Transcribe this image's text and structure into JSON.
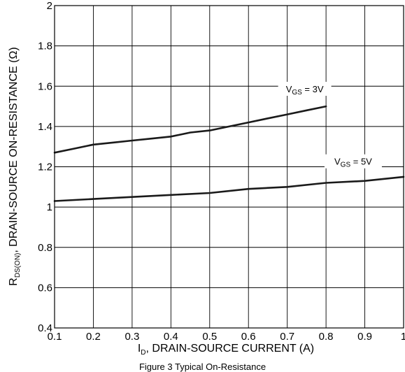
{
  "chart_data": {
    "type": "line",
    "title": "",
    "xlabel": "I_D, DRAIN-SOURCE CURRENT (A)",
    "xlabel_main": "I",
    "xlabel_sub": "D",
    "xlabel_rest": ", DRAIN-SOURCE CURRENT (A)",
    "ylabel": "R_DS(ON), DRAIN-SOURCE ON-RESISTANCE (Ω)",
    "ylabel_main": "R",
    "ylabel_sub": "DS(ON)",
    "ylabel_rest": ", DRAIN-SOURCE ON-RESISTANCE (Ω)",
    "xlim": [
      0.1,
      1
    ],
    "ylim": [
      0.4,
      2
    ],
    "x_ticks": [
      0.1,
      0.2,
      0.3,
      0.4,
      0.5,
      0.6,
      0.7,
      0.8,
      0.9,
      1
    ],
    "x_tick_labels": [
      "0.1",
      "0.2",
      "0.3",
      "0.4",
      "0.5",
      "0.6",
      "0.7",
      "0.8",
      "0.9",
      "1"
    ],
    "y_ticks": [
      0.4,
      0.6,
      0.8,
      1.0,
      1.2,
      1.4,
      1.6,
      1.8,
      2.0
    ],
    "y_tick_labels": [
      "0.4",
      "0.6",
      "0.8",
      "1",
      "1.2",
      "1.4",
      "1.6",
      "1.8",
      "2"
    ],
    "grid": true,
    "series": [
      {
        "name": "V_GS = 3V",
        "label_main": "V",
        "label_sub": "GS",
        "label_rest": " = 3V",
        "color": "#1a1a1a",
        "x": [
          0.1,
          0.15,
          0.2,
          0.25,
          0.3,
          0.35,
          0.4,
          0.45,
          0.5,
          0.55,
          0.6,
          0.65,
          0.7,
          0.75,
          0.8
        ],
        "y": [
          1.27,
          1.29,
          1.31,
          1.32,
          1.33,
          1.34,
          1.35,
          1.37,
          1.38,
          1.4,
          1.42,
          1.44,
          1.46,
          1.48,
          1.5
        ]
      },
      {
        "name": "V_GS = 5V",
        "label_main": "V",
        "label_sub": "GS",
        "label_rest": " = 5V",
        "color": "#1a1a1a",
        "x": [
          0.1,
          0.2,
          0.3,
          0.4,
          0.5,
          0.6,
          0.7,
          0.8,
          0.9,
          1.0
        ],
        "y": [
          1.03,
          1.04,
          1.05,
          1.06,
          1.07,
          1.09,
          1.1,
          1.12,
          1.13,
          1.15
        ]
      }
    ],
    "caption": "Figure 3 Typical On-Resistance"
  }
}
